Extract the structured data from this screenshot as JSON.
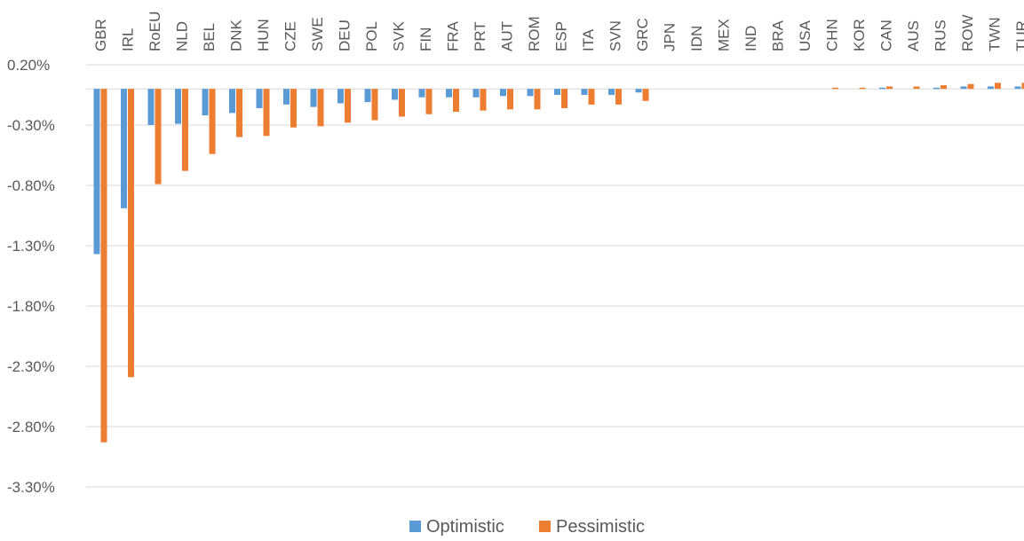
{
  "chart_data": {
    "type": "bar",
    "categories": [
      "GBR",
      "IRL",
      "RoEU",
      "NLD",
      "BEL",
      "DNK",
      "HUN",
      "CZE",
      "SWE",
      "DEU",
      "POL",
      "SVK",
      "FIN",
      "FRA",
      "PRT",
      "AUT",
      "ROM",
      "ESP",
      "ITA",
      "SVN",
      "GRC",
      "JPN",
      "IDN",
      "MEX",
      "IND",
      "BRA",
      "USA",
      "CHN",
      "KOR",
      "CAN",
      "AUS",
      "RUS",
      "ROW",
      "TWN",
      "TUR"
    ],
    "series": [
      {
        "name": "Optimistic",
        "color": "#5B9BD5",
        "values": [
          -1.37,
          -0.99,
          -0.3,
          -0.29,
          -0.22,
          -0.2,
          -0.16,
          -0.13,
          -0.15,
          -0.12,
          -0.11,
          -0.09,
          -0.07,
          -0.07,
          -0.07,
          -0.06,
          -0.06,
          -0.05,
          -0.05,
          -0.05,
          -0.03,
          0,
          0,
          0,
          0,
          0,
          0,
          0,
          0,
          0.01,
          0,
          0.01,
          0.02,
          0.02,
          0.02
        ]
      },
      {
        "name": "Pessimistic",
        "color": "#ED7D31",
        "values": [
          -2.93,
          -2.39,
          -0.79,
          -0.68,
          -0.54,
          -0.4,
          -0.39,
          -0.32,
          -0.31,
          -0.28,
          -0.26,
          -0.23,
          -0.21,
          -0.19,
          -0.18,
          -0.17,
          -0.17,
          -0.16,
          -0.13,
          -0.13,
          -0.1,
          0,
          0,
          0,
          0,
          0,
          0,
          0.01,
          0.01,
          0.02,
          0.02,
          0.03,
          0.04,
          0.05,
          0.05
        ]
      }
    ],
    "yticks": [
      "0.20%",
      "-0.30%",
      "-0.80%",
      "-1.30%",
      "-1.80%",
      "-2.30%",
      "-2.80%",
      "-3.30%"
    ],
    "ytick_values": [
      0.2,
      -0.3,
      -0.8,
      -1.3,
      -1.8,
      -2.3,
      -2.8,
      -3.3
    ],
    "ylim": [
      -3.3,
      0.2
    ],
    "grid": true,
    "legend_position": "bottom",
    "title": "",
    "xlabel": "",
    "ylabel": ""
  }
}
